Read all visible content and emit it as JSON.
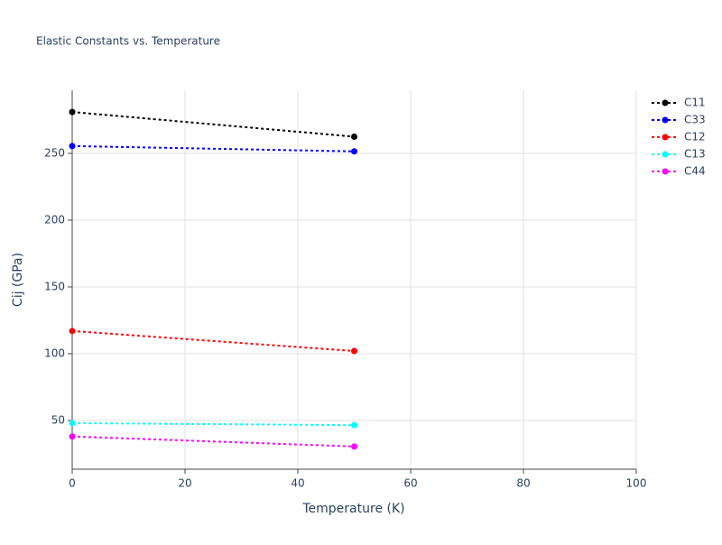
{
  "chart_data": {
    "type": "line",
    "title": "Elastic Constants vs. Temperature",
    "x_label": "Temperature (K)",
    "y_label": "Cij (GPa)",
    "x": [
      0,
      50
    ],
    "series": [
      {
        "name": "C11",
        "color": "#000000",
        "values": [
          281,
          262.5
        ]
      },
      {
        "name": "C33",
        "color": "#0000ff",
        "values": [
          255.5,
          251.5
        ]
      },
      {
        "name": "C12",
        "color": "#ff0000",
        "values": [
          117,
          102
        ]
      },
      {
        "name": "C13",
        "color": "#00ffff",
        "values": [
          48,
          46.5
        ]
      },
      {
        "name": "C44",
        "color": "#ff00ff",
        "values": [
          38,
          30.5
        ]
      }
    ],
    "xlim": [
      0,
      100
    ],
    "xticks": [
      0,
      20,
      40,
      60,
      80,
      100
    ],
    "ylim": [
      13.5,
      297.3
    ],
    "yticks": [
      50,
      100,
      150,
      200,
      250
    ],
    "grid": true,
    "legend": "top-right"
  }
}
